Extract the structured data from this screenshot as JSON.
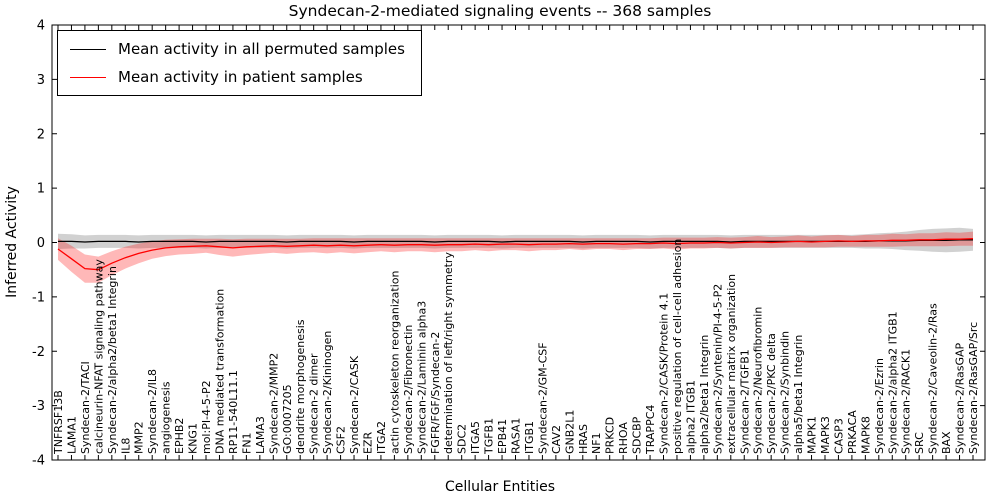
{
  "title": "Syndecan-2-mediated signaling events -- 368 samples",
  "axes": {
    "xlabel": "Cellular Entities",
    "ylabel": "Inferred Activity"
  },
  "chart_data": {
    "type": "line",
    "title": "Syndecan-2-mediated signaling events -- 368 samples",
    "xlabel": "Cellular Entities",
    "ylabel": "Inferred Activity",
    "ylim": [
      -4,
      4
    ],
    "yticks": [
      -4,
      -3,
      -2,
      -1,
      0,
      1,
      2,
      3,
      4
    ],
    "grid": false,
    "legend_position": "upper left",
    "categories": [
      "TNFRSF13B",
      "LAMA1",
      "Syndecan-2/TACI",
      "calcineurin-NFAT signaling pathway",
      "Syndecan-2/alpha2/beta1 Integrin",
      "IL8",
      "MMP2",
      "Syndecan-2/IL8",
      "angiogenesis",
      "EPHB2",
      "KNG1",
      "mol:PI-4-5-P2",
      "DNA mediated transformation",
      "RP11-540L11.1",
      "FN1",
      "LAMA3",
      "Syndecan-2/MMP2",
      "GO:0007205",
      "dendrite morphogenesis",
      "Syndecan-2 dimer",
      "Syndecan-2/Kininogen",
      "CSF2",
      "Syndecan-2/CASK",
      "EZR",
      "ITGA2",
      "actin cytoskeleton reorganization",
      "Syndecan-2/Fibronectin",
      "Syndecan-2/Laminin alpha3",
      "FGFR/FGF/Syndecan-2",
      "determination of left/right symmetry",
      "SDC2",
      "ITGA5",
      "TGFB1",
      "EPB41",
      "RASA1",
      "ITGB1",
      "Syndecan-2/GM-CSF",
      "CAV2",
      "GNB2L1",
      "HRAS",
      "NF1",
      "PRKCD",
      "RHOA",
      "SDCBP",
      "TRAPPC4",
      "Syndecan-2/CASK/Protein 4.1",
      "positive regulation of cell-cell adhesion",
      "alpha2 ITGB1",
      "alpha2/beta1 Integrin",
      "Syndecan-2/Syntenin/PI-4-5-P2",
      "extracellular matrix organization",
      "Syndecan-2/TGFB1",
      "Syndecan-2/Neurofibromin",
      "Syndecan-2/PKC delta",
      "Syndecan-2/Synbindin",
      "alpha5/beta1 Integrin",
      "MAPK1",
      "MAPK3",
      "CASP3",
      "PRKACA",
      "MAPK8",
      "Syndecan-2/Ezrin",
      "Syndecan-2/alpha2 ITGB1",
      "Syndecan-2/RACK1",
      "SRC",
      "Syndecan-2/Caveolin-2/Ras",
      "BAX",
      "Syndecan-2/RasGAP",
      "Syndecan-2/RasGAP/Src"
    ],
    "series": [
      {
        "name": "Mean activity in all permuted samples",
        "color": "#000000",
        "band_color": "rgba(0,0,0,0.18)",
        "values": [
          0.02,
          0.02,
          0.01,
          0.02,
          0.02,
          0.02,
          0.01,
          0.02,
          0.02,
          0.02,
          0.02,
          0.01,
          0.02,
          0.02,
          0.02,
          0.02,
          0.02,
          0.01,
          0.02,
          0.02,
          0.02,
          0.02,
          0.01,
          0.02,
          0.02,
          0.02,
          0.02,
          0.02,
          0.01,
          0.02,
          0.02,
          0.02,
          0.02,
          0.01,
          0.02,
          0.02,
          0.02,
          0.02,
          0.02,
          0.01,
          0.02,
          0.02,
          0.02,
          0.02,
          0.01,
          0.02,
          0.02,
          0.02,
          0.02,
          0.02,
          0.01,
          0.02,
          0.02,
          0.02,
          0.02,
          0.02,
          0.02,
          0.02,
          0.02,
          0.02,
          0.02,
          0.03,
          0.03,
          0.03,
          0.04,
          0.04,
          0.04,
          0.05,
          0.05
        ],
        "band": [
          0.14,
          0.13,
          0.12,
          0.12,
          0.12,
          0.12,
          0.12,
          0.12,
          0.12,
          0.12,
          0.12,
          0.12,
          0.12,
          0.12,
          0.12,
          0.12,
          0.12,
          0.12,
          0.12,
          0.12,
          0.12,
          0.12,
          0.12,
          0.12,
          0.12,
          0.12,
          0.12,
          0.12,
          0.12,
          0.12,
          0.12,
          0.12,
          0.12,
          0.12,
          0.12,
          0.12,
          0.12,
          0.12,
          0.12,
          0.12,
          0.12,
          0.12,
          0.12,
          0.12,
          0.12,
          0.12,
          0.12,
          0.12,
          0.12,
          0.12,
          0.12,
          0.12,
          0.12,
          0.12,
          0.12,
          0.12,
          0.12,
          0.12,
          0.12,
          0.12,
          0.13,
          0.14,
          0.15,
          0.17,
          0.19,
          0.21,
          0.22,
          0.22,
          0.2
        ]
      },
      {
        "name": "Mean activity in patient samples",
        "color": "#ff0000",
        "band_color": "rgba(255,0,0,0.28)",
        "values": [
          -0.12,
          -0.3,
          -0.48,
          -0.5,
          -0.38,
          -0.28,
          -0.2,
          -0.14,
          -0.1,
          -0.08,
          -0.07,
          -0.06,
          -0.08,
          -0.1,
          -0.08,
          -0.07,
          -0.06,
          -0.07,
          -0.06,
          -0.05,
          -0.06,
          -0.05,
          -0.06,
          -0.05,
          -0.04,
          -0.05,
          -0.04,
          -0.04,
          -0.05,
          -0.04,
          -0.04,
          -0.03,
          -0.04,
          -0.03,
          -0.03,
          -0.04,
          -0.03,
          -0.03,
          -0.02,
          -0.03,
          -0.02,
          -0.02,
          -0.03,
          -0.02,
          -0.02,
          -0.01,
          -0.02,
          -0.01,
          -0.01,
          0.0,
          -0.01,
          0.0,
          0.01,
          0.0,
          0.01,
          0.02,
          0.01,
          0.02,
          0.03,
          0.02,
          0.03,
          0.03,
          0.04,
          0.04,
          0.05,
          0.05,
          0.06,
          0.06,
          0.07
        ],
        "band": [
          0.2,
          0.24,
          0.26,
          0.24,
          0.22,
          0.2,
          0.18,
          0.16,
          0.15,
          0.14,
          0.14,
          0.13,
          0.15,
          0.16,
          0.15,
          0.14,
          0.13,
          0.14,
          0.13,
          0.13,
          0.14,
          0.13,
          0.14,
          0.13,
          0.12,
          0.13,
          0.12,
          0.12,
          0.13,
          0.12,
          0.12,
          0.11,
          0.12,
          0.11,
          0.11,
          0.12,
          0.11,
          0.11,
          0.1,
          0.11,
          0.1,
          0.1,
          0.11,
          0.1,
          0.1,
          0.1,
          0.11,
          0.1,
          0.1,
          0.1,
          0.1,
          0.1,
          0.11,
          0.1,
          0.1,
          0.11,
          0.1,
          0.11,
          0.11,
          0.1,
          0.11,
          0.11,
          0.12,
          0.11,
          0.12,
          0.12,
          0.13,
          0.12,
          0.13
        ]
      }
    ]
  }
}
